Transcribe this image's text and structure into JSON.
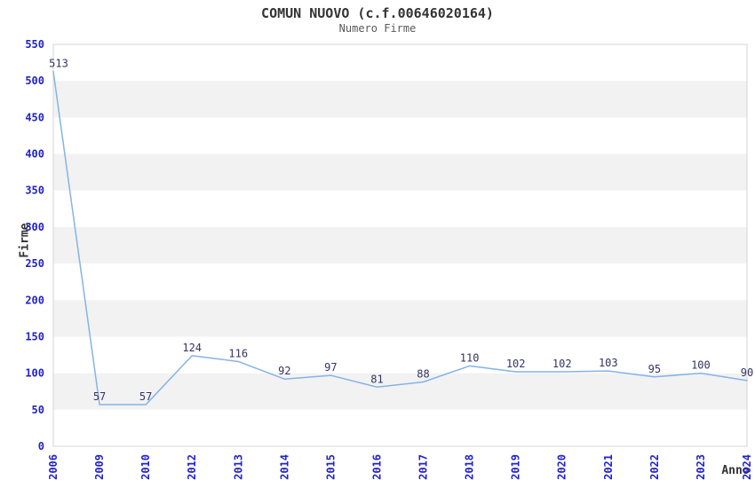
{
  "title": "COMUN NUOVO (c.f.00646020164)",
  "subtitle": "Numero Firme",
  "chart_data": {
    "type": "line",
    "title": "COMUN NUOVO (c.f.00646020164)",
    "subtitle": "Numero Firme",
    "xlabel": "Anno",
    "ylabel": "Firme",
    "categories": [
      "2006",
      "2009",
      "2010",
      "2012",
      "2013",
      "2014",
      "2015",
      "2016",
      "2017",
      "2018",
      "2019",
      "2020",
      "2021",
      "2022",
      "2023",
      "2024"
    ],
    "values": [
      513,
      57,
      57,
      124,
      116,
      92,
      97,
      81,
      88,
      110,
      102,
      102,
      103,
      95,
      100,
      90
    ],
    "ylim": [
      0,
      550
    ],
    "yticks": [
      0,
      50,
      100,
      150,
      200,
      250,
      300,
      350,
      400,
      450,
      500,
      550
    ],
    "x_axis_even_spacing": true,
    "data_labels_shown": true,
    "legend": "none",
    "grid": "alternating-horizontal-bands-every-50",
    "colors": {
      "line": "#85b3e8",
      "tick_label": "#2222cc",
      "data_label": "#333366",
      "band_fill": "#f2f2f2",
      "plot_border": "#d6d6d6",
      "title": "#333333",
      "subtitle": "#595959",
      "axis_title": "#333333",
      "background": "#ffffff"
    }
  }
}
